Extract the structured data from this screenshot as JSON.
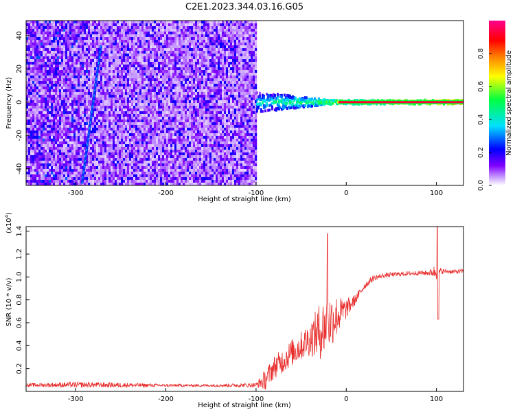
{
  "title": "C2E1.2023.344.03.16.G05",
  "colors": {
    "snr_line": "#e8302f",
    "axis": "#000000"
  },
  "chart_data": [
    {
      "type": "heatmap",
      "xlabel": "Height of straight line (km)",
      "ylabel": "Frequency (Hz)",
      "xlim": [
        -355,
        130
      ],
      "ylim": [
        -50,
        49
      ],
      "xticks": [
        -300,
        -200,
        -100,
        0,
        100
      ],
      "yticks": [
        -40,
        -20,
        0,
        20,
        40
      ],
      "xtick_labels": [
        "-300",
        "-200",
        "-100",
        "0",
        "100"
      ],
      "ytick_labels": [
        "-40",
        "-20",
        "0",
        "20",
        "40"
      ],
      "colorbar": {
        "label": "Normalized spectral amplitude",
        "range": [
          0,
          1
        ],
        "ticks": [
          0.0,
          0.2,
          0.4,
          0.6,
          0.8
        ],
        "tick_labels": [
          "0.0",
          "0.2",
          "0.4",
          "0.6",
          "0.8"
        ],
        "colors": [
          "#ffffff",
          "#8000ff",
          "#0000ff",
          "#00e0ff",
          "#00ff40",
          "#ffff00",
          "#ff8000",
          "#ff0000",
          "#ff0090"
        ]
      },
      "regions": [
        {
          "name": "noise",
          "x_range": [
            -355,
            -100
          ],
          "y_range": [
            -50,
            49
          ],
          "level": 0.1
        },
        {
          "name": "tone",
          "x_range": [
            -100,
            130
          ],
          "y_center": 0,
          "level_start": 0.4,
          "level_end": 0.9
        }
      ],
      "streak": {
        "x0": -293,
        "y0": -49,
        "x1": -272,
        "y1": 34
      }
    },
    {
      "type": "line",
      "xlabel": "Height of straight line (km)",
      "ylabel": "SNR (10 * v/v)",
      "ylabel_scale": "(x10",
      "ylabel_scale_exp": "4",
      "ylabel_scale_close": ")",
      "xlim": [
        -355,
        130
      ],
      "ylim": [
        0,
        14400
      ],
      "xticks": [
        -300,
        -200,
        -100,
        0,
        100
      ],
      "yticks": [
        2000,
        4000,
        6000,
        8000,
        10000,
        12000,
        14000
      ],
      "xtick_labels": [
        "-300",
        "-200",
        "-100",
        "0",
        "100"
      ],
      "ytick_labels": [
        "0.2",
        "0.4",
        "0.6",
        "0.8",
        "1.0",
        "1.2",
        "1.4"
      ],
      "x": [
        -355,
        -300,
        -250,
        -200,
        -150,
        -100,
        -90,
        -80,
        -70,
        -60,
        -50,
        -40,
        -30,
        -20,
        -10,
        0,
        10,
        20,
        30,
        40,
        50,
        60,
        70,
        80,
        90,
        95,
        100,
        105,
        110,
        120,
        130
      ],
      "values": [
        550,
        580,
        550,
        520,
        520,
        550,
        1000,
        2100,
        2700,
        3400,
        4000,
        4600,
        5200,
        6000,
        6600,
        7200,
        8000,
        9200,
        9900,
        10100,
        10200,
        10250,
        10300,
        10350,
        10350,
        10400,
        10500,
        10500,
        10500,
        10450,
        10500
      ],
      "noise_amplitude": [
        150,
        250,
        220,
        120,
        120,
        200,
        900,
        1000,
        1100,
        1200,
        1300,
        1500,
        2500,
        2600,
        1800,
        900,
        450,
        300,
        250,
        220,
        200,
        200,
        200,
        200,
        220,
        350,
        800,
        250,
        200,
        200,
        200
      ],
      "annotations": [
        {
          "x": -21,
          "value": 13800
        },
        {
          "x": 101,
          "value": 14400
        },
        {
          "x": 102,
          "value": 6300
        }
      ]
    }
  ]
}
